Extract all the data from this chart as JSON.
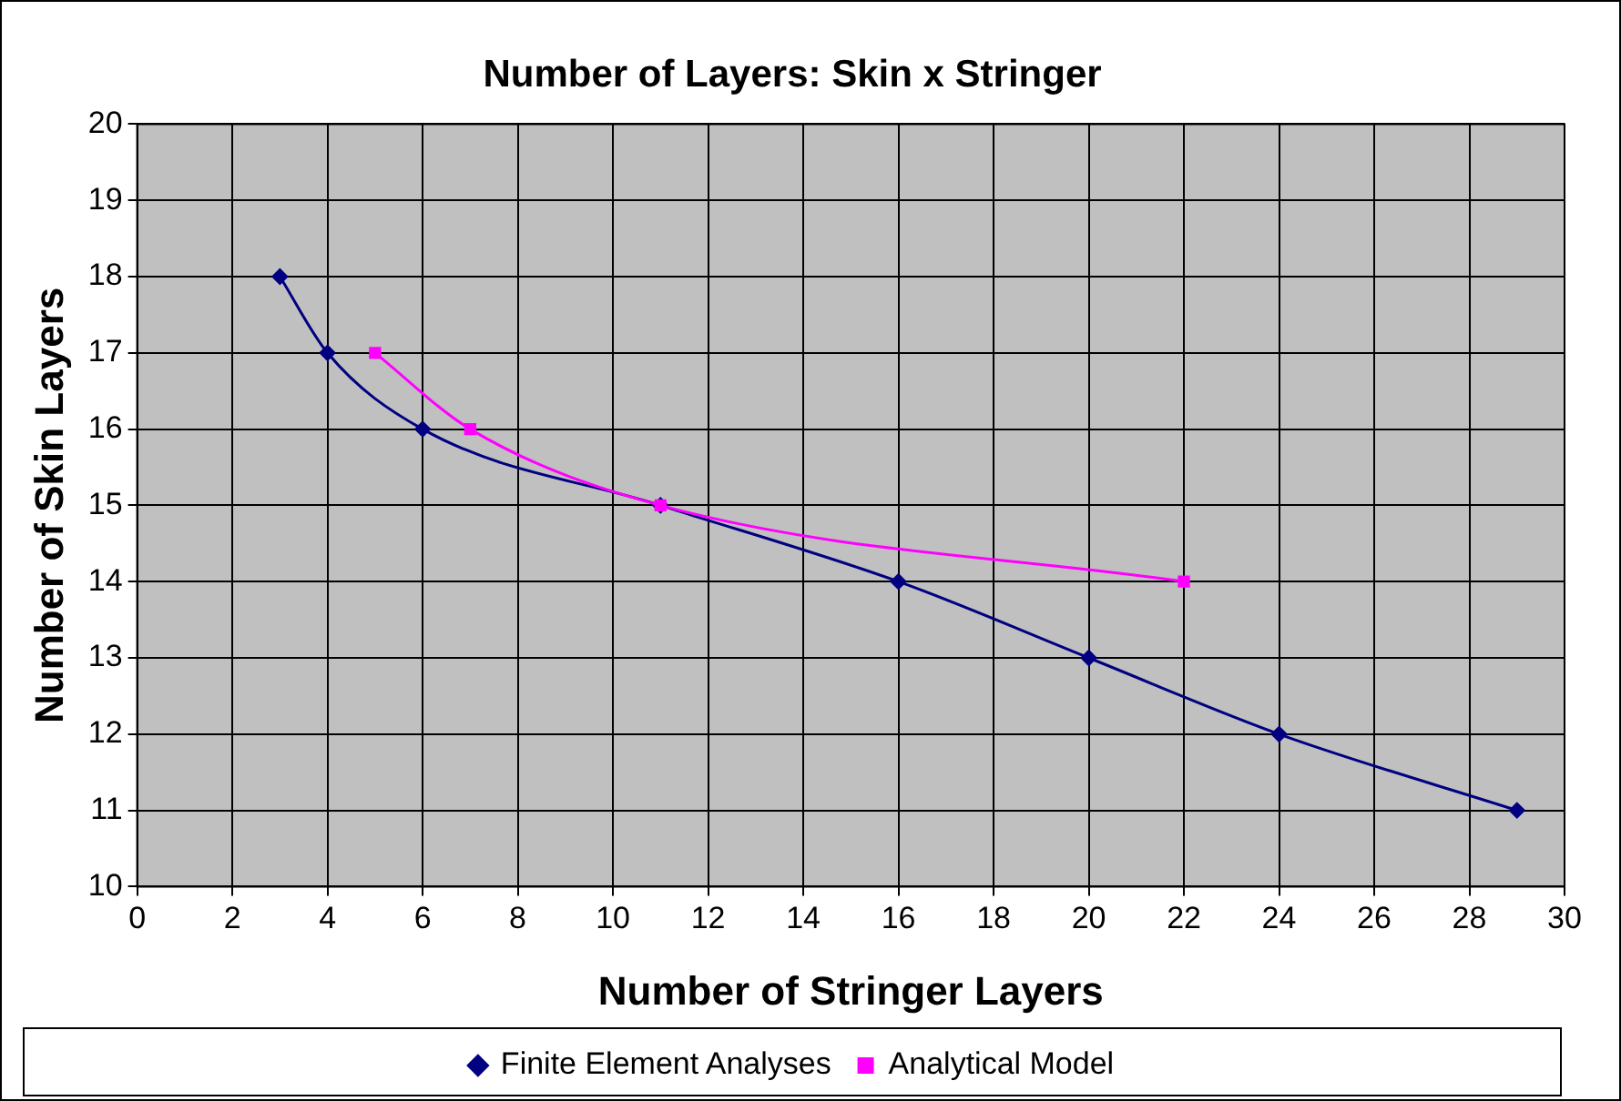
{
  "chart_data": {
    "type": "line",
    "title": "Number of Layers: Skin x Stringer",
    "xlabel": "Number of Stringer Layers",
    "ylabel": "Number of Skin Layers",
    "xlim": [
      0,
      30
    ],
    "xticks": [
      0,
      2,
      4,
      6,
      8,
      10,
      12,
      14,
      16,
      18,
      20,
      22,
      24,
      26,
      28,
      30
    ],
    "ylim": [
      10,
      20
    ],
    "yticks": [
      10,
      11,
      12,
      13,
      14,
      15,
      16,
      17,
      18,
      19,
      20
    ],
    "grid": true,
    "legend": "bottom",
    "line_style": "solid",
    "series": [
      {
        "name": "Finite Element Analyses",
        "color": "#000080",
        "marker": "diamond",
        "x": [
          3,
          4,
          6,
          11,
          16,
          20,
          24,
          29
        ],
        "values": [
          18,
          17,
          16,
          15,
          14,
          13,
          12,
          11
        ]
      },
      {
        "name": "Analytical Model",
        "color": "#ff00ff",
        "marker": "square",
        "x": [
          5,
          7,
          11,
          22
        ],
        "values": [
          17,
          16,
          15,
          14
        ]
      }
    ]
  }
}
